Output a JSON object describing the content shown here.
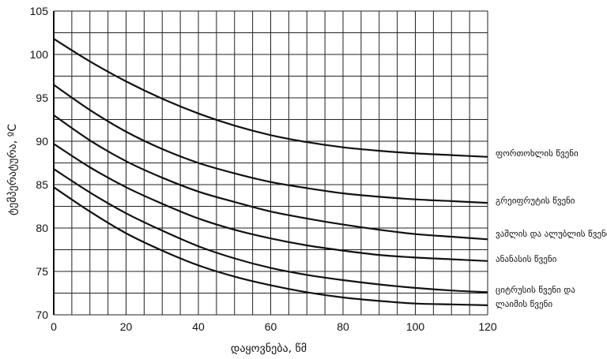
{
  "chart_data": {
    "type": "line",
    "xlabel": "დაყოვნება, წმ",
    "ylabel": "ტემპერატურა, ºC",
    "xlim": [
      0,
      120
    ],
    "ylim": [
      70,
      105
    ],
    "x_ticks": [
      "0",
      "20",
      "40",
      "60",
      "80",
      "100",
      "120"
    ],
    "y_ticks": [
      "70",
      "75",
      "80",
      "85",
      "90",
      "95",
      "100",
      "105"
    ],
    "grid": true,
    "series": [
      {
        "name": "ფორთოხლის წვენი",
        "x": [
          0,
          10,
          20,
          30,
          40,
          50,
          60,
          70,
          80,
          90,
          100,
          110,
          120
        ],
        "y": [
          101.8,
          99.2,
          96.9,
          94.9,
          93.2,
          91.8,
          90.7,
          89.9,
          89.3,
          88.9,
          88.6,
          88.4,
          88.2
        ]
      },
      {
        "name": "გრეიფრუტის წვენი",
        "x": [
          0,
          10,
          20,
          30,
          40,
          50,
          60,
          70,
          80,
          90,
          100,
          110,
          120
        ],
        "y": [
          96.5,
          93.6,
          91.1,
          89.1,
          87.5,
          86.3,
          85.3,
          84.6,
          84.0,
          83.6,
          83.3,
          83.1,
          82.9
        ]
      },
      {
        "name": "ვაშლის და ალუბლის წვენი",
        "x": [
          0,
          10,
          20,
          30,
          40,
          50,
          60,
          70,
          80,
          90,
          100,
          110,
          120
        ],
        "y": [
          93.0,
          90.1,
          87.7,
          85.8,
          84.2,
          83.0,
          81.9,
          81.1,
          80.4,
          79.8,
          79.3,
          79.0,
          78.7
        ]
      },
      {
        "name": "ანანასის წვენი",
        "x": [
          0,
          10,
          20,
          30,
          40,
          50,
          60,
          70,
          80,
          90,
          100,
          110,
          120
        ],
        "y": [
          89.7,
          87.0,
          84.7,
          82.8,
          81.1,
          79.8,
          78.8,
          78.0,
          77.4,
          76.9,
          76.6,
          76.4,
          76.2
        ]
      },
      {
        "name": "ციტრუსის წვენი და",
        "x": [
          0,
          10,
          20,
          30,
          40,
          50,
          60,
          70,
          80,
          90,
          100,
          110,
          120
        ],
        "y": [
          86.8,
          84.1,
          81.7,
          79.7,
          77.9,
          76.5,
          75.4,
          74.6,
          74.0,
          73.5,
          73.1,
          72.8,
          72.6
        ]
      },
      {
        "name": "ლაიმის წვენი",
        "x": [
          0,
          10,
          20,
          30,
          40,
          50,
          60,
          70,
          80,
          90,
          100,
          110,
          120
        ],
        "y": [
          84.7,
          81.9,
          79.4,
          77.4,
          75.7,
          74.4,
          73.4,
          72.6,
          72.0,
          71.6,
          71.3,
          71.2,
          71.1
        ]
      }
    ]
  }
}
